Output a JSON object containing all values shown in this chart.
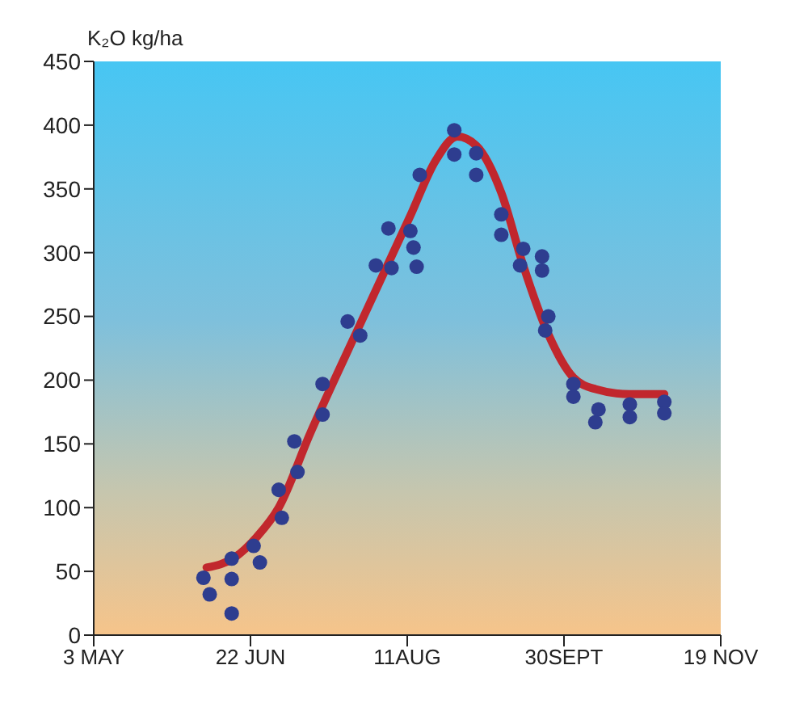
{
  "chart_data": {
    "type": "scatter",
    "ylabel": "K₂O kg/ha",
    "xlim": [
      "--05-03",
      "--11-19"
    ],
    "xticks": [
      {
        "value": "--05-03",
        "label": "3 MAY"
      },
      {
        "value": "--06-22",
        "label": "22 JUN"
      },
      {
        "value": "--08-11",
        "label": "11AUG"
      },
      {
        "value": "--09-30",
        "label": "30SEPT"
      },
      {
        "value": "--11-19",
        "label": "19 NOV"
      }
    ],
    "ylim": [
      0,
      450
    ],
    "yticks": [
      0,
      50,
      100,
      150,
      200,
      250,
      300,
      350,
      400,
      450
    ],
    "grid": false,
    "series": [
      {
        "marker": "circle",
        "color": "#2e3d8f",
        "x": [
          "--06-07",
          "--06-09",
          "--06-16",
          "--06-16",
          "--06-16",
          "--06-23",
          "--06-25",
          "--07-02",
          "--07-01",
          "--07-07",
          "--07-06",
          "--07-15",
          "--07-15",
          "--07-23",
          "--07-27",
          "--08-01",
          "--08-06",
          "--08-05",
          "--08-12",
          "--08-13",
          "--08-14",
          "--08-15",
          "--08-26",
          "--08-26",
          "--09-02",
          "--09-02",
          "--09-10",
          "--09-10",
          "--09-17",
          "--09-16",
          "--09-23",
          "--09-23",
          "--09-25",
          "--09-24",
          "--10-03",
          "--10-03",
          "--10-11",
          "--10-10",
          "--10-21",
          "--10-21",
          "--11-01",
          "--11-01"
        ],
        "values": [
          45,
          32,
          60,
          44,
          17,
          70,
          57,
          92,
          114,
          128,
          152,
          173,
          197,
          246,
          235,
          290,
          288,
          319,
          317,
          304,
          289,
          361,
          396,
          377,
          378,
          361,
          330,
          314,
          303,
          290,
          297,
          286,
          250,
          239,
          197,
          187,
          177,
          167,
          181,
          171,
          183,
          174
        ]
      },
      {
        "type": "line",
        "marker": "none",
        "line_style": "solid",
        "color": "#c1272d",
        "x": [
          "--06-08",
          "--06-17",
          "--06-24",
          "--07-01",
          "--07-11",
          "--07-27",
          "--08-12",
          "--08-20",
          "--08-27",
          "--09-02",
          "--09-10",
          "--09-17",
          "--09-25",
          "--10-03",
          "--10-10",
          "--10-21",
          "--11-01"
        ],
        "values": [
          53,
          61,
          77,
          100,
          158,
          244,
          329,
          372,
          391,
          384,
          347,
          290,
          236,
          202,
          193,
          189,
          189
        ]
      }
    ]
  }
}
